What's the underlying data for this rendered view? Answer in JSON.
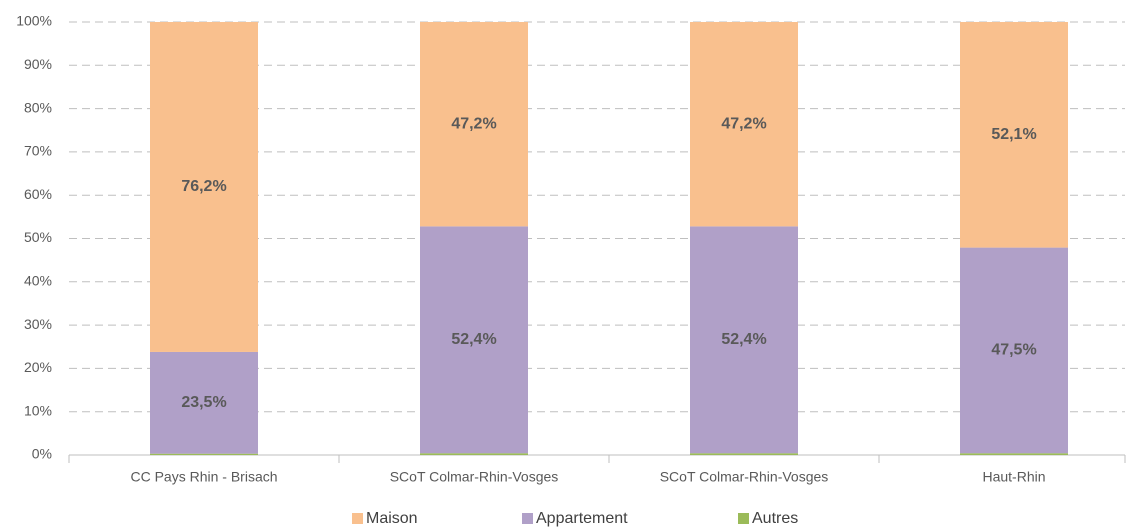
{
  "chart_data": {
    "type": "stacked_bar",
    "categories": [
      "CC Pays Rhin - Brisach",
      "SCoT Colmar-Rhin-Vosges",
      "SCoT Colmar-Rhin-Vosges",
      "Haut-Rhin"
    ],
    "series": [
      {
        "name": "Maison",
        "color": "#f9c08e",
        "values": [
          76.2,
          47.2,
          47.2,
          52.1
        ],
        "value_labels": [
          "76,2%",
          "47,2%",
          "47,2%",
          "52,1%"
        ]
      },
      {
        "name": "Appartement",
        "color": "#b0a0c8",
        "values": [
          23.5,
          52.4,
          52.4,
          47.5
        ],
        "value_labels": [
          "23,5%",
          "52,4%",
          "52,4%",
          "47,5%"
        ]
      },
      {
        "name": "Autres",
        "color": "#9bbb59",
        "values": [
          0.3,
          0.4,
          0.4,
          0.4
        ]
      }
    ],
    "ylim": [
      0,
      100
    ],
    "yticks": [
      {
        "value": 0,
        "label": "0%"
      },
      {
        "value": 10,
        "label": "10%"
      },
      {
        "value": 20,
        "label": "20%"
      },
      {
        "value": 30,
        "label": "30%"
      },
      {
        "value": 40,
        "label": "40%"
      },
      {
        "value": 50,
        "label": "50%"
      },
      {
        "value": 60,
        "label": "60%"
      },
      {
        "value": 70,
        "label": "70%"
      },
      {
        "value": 80,
        "label": "80%"
      },
      {
        "value": 90,
        "label": "90%"
      },
      {
        "value": 100,
        "label": "100%"
      }
    ],
    "grid": true,
    "legend": "bottom"
  }
}
